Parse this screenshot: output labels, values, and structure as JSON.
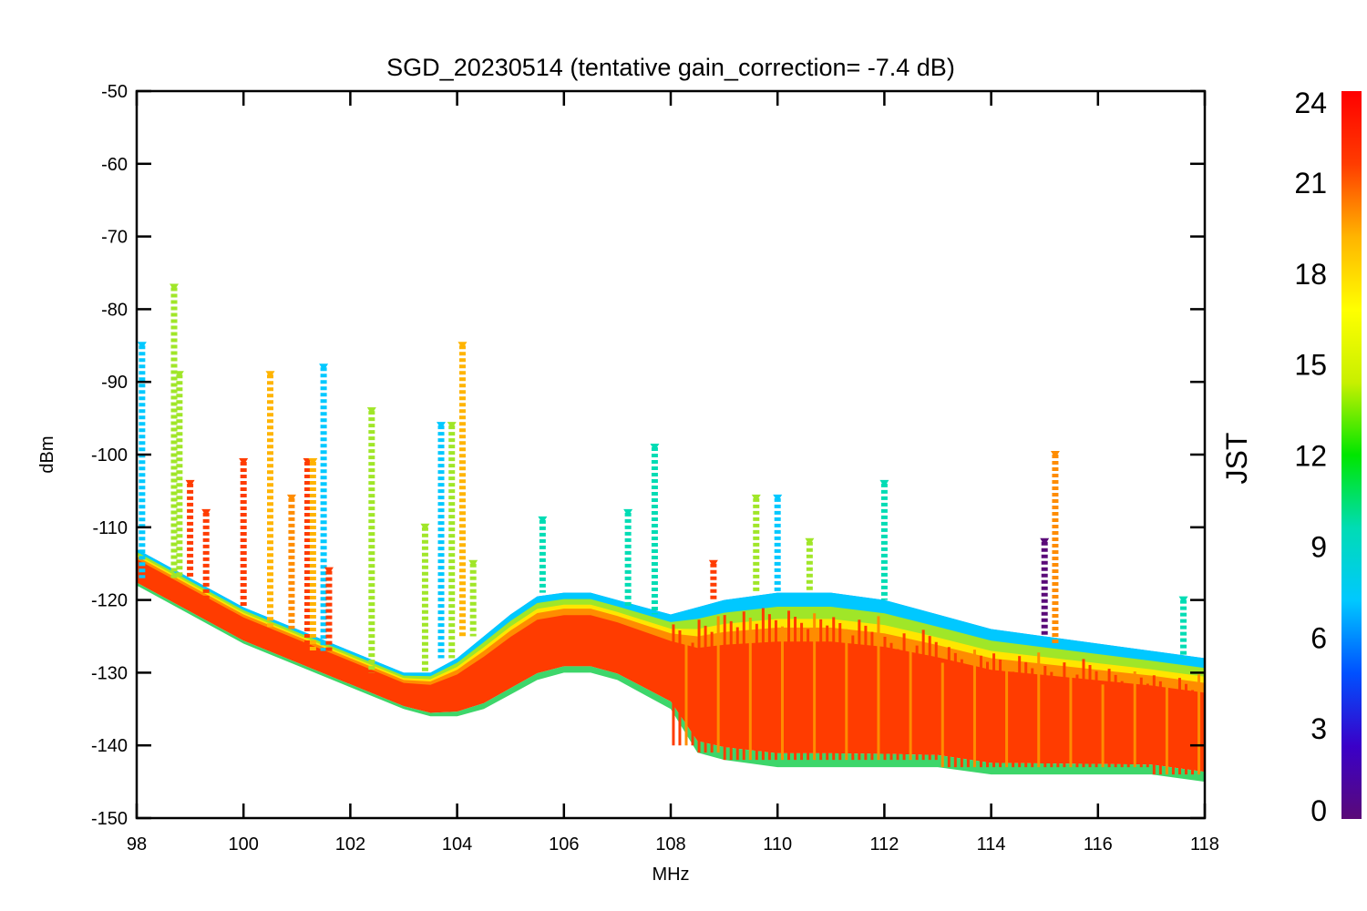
{
  "chart_data": {
    "type": "scatter",
    "title": "SGD_20230514 (tentative gain_correction= -7.4 dB)",
    "xlabel": "MHz",
    "ylabel": "dBm",
    "xlim": [
      98,
      118
    ],
    "ylim": [
      -150,
      -50
    ],
    "x_ticks": [
      "98",
      "100",
      "102",
      "104",
      "106",
      "108",
      "110",
      "112",
      "114",
      "116",
      "118"
    ],
    "y_ticks": [
      "-50",
      "-60",
      "-70",
      "-80",
      "-90",
      "-100",
      "-110",
      "-120",
      "-130",
      "-140",
      "-150"
    ],
    "colorbar": {
      "label": "JST",
      "range": [
        0,
        24
      ],
      "ticks": [
        "0",
        "3",
        "6",
        "9",
        "12",
        "15",
        "18",
        "21",
        "24"
      ],
      "colormap": "rainbow",
      "colors": [
        "#5a0a78",
        "#3a00c8",
        "#0050ff",
        "#00c8ff",
        "#00dcb4",
        "#00e600",
        "#c8f000",
        "#ffff00",
        "#ffb400",
        "#ff3c00",
        "#ff0000"
      ]
    },
    "grid": false,
    "noise_floor_profile": {
      "description_free_values": true,
      "x": [
        98,
        99,
        100,
        101,
        102,
        103,
        103.5,
        104,
        104.5,
        105,
        105.5,
        106,
        106.5,
        107,
        107.5,
        108,
        108.5,
        109,
        110,
        111,
        112,
        113,
        114,
        115,
        116,
        117,
        118
      ],
      "upper": [
        -113,
        -117,
        -121,
        -124,
        -127,
        -130,
        -130,
        -128,
        -125,
        -122,
        -119.5,
        -119,
        -119,
        -120,
        -121,
        -122,
        -121,
        -120,
        -119,
        -119,
        -120,
        -122,
        -124,
        -125,
        -126,
        -127,
        -128
      ],
      "lower": [
        -118,
        -122,
        -126,
        -129,
        -132,
        -135,
        -136,
        -136,
        -135,
        -133,
        -131,
        -130,
        -130,
        -131,
        -133,
        -135,
        -141,
        -142,
        -143,
        -143,
        -143,
        -143,
        -144,
        -144,
        -144,
        -144,
        -145
      ]
    },
    "peaks": [
      {
        "x": 98.1,
        "top": -85,
        "color": "#00c8ff"
      },
      {
        "x": 98.7,
        "top": -77,
        "color": "#a0e628"
      },
      {
        "x": 98.8,
        "top": -89,
        "color": "#a0e628"
      },
      {
        "x": 99.0,
        "top": -104,
        "color": "#ff3c00"
      },
      {
        "x": 99.3,
        "top": -108,
        "color": "#ff3c00"
      },
      {
        "x": 100.0,
        "top": -101,
        "color": "#ff3c00"
      },
      {
        "x": 100.5,
        "top": -89,
        "color": "#ffb400"
      },
      {
        "x": 100.9,
        "top": -106,
        "color": "#ff8c00"
      },
      {
        "x": 101.2,
        "top": -101,
        "color": "#ff3c00"
      },
      {
        "x": 101.3,
        "top": -101,
        "color": "#ffb400"
      },
      {
        "x": 101.5,
        "top": -88,
        "color": "#00c8ff"
      },
      {
        "x": 101.6,
        "top": -116,
        "color": "#ff3c00"
      },
      {
        "x": 102.4,
        "top": -94,
        "color": "#a0e628"
      },
      {
        "x": 103.4,
        "top": -110,
        "color": "#a0e628"
      },
      {
        "x": 103.7,
        "top": -96,
        "color": "#00c8ff"
      },
      {
        "x": 103.9,
        "top": -96,
        "color": "#a0e628"
      },
      {
        "x": 104.1,
        "top": -85,
        "color": "#ffb400"
      },
      {
        "x": 104.3,
        "top": -115,
        "color": "#a0e628"
      },
      {
        "x": 105.6,
        "top": -109,
        "color": "#00dcb4"
      },
      {
        "x": 107.2,
        "top": -108,
        "color": "#00dcb4"
      },
      {
        "x": 107.7,
        "top": -99,
        "color": "#00dcb4"
      },
      {
        "x": 108.8,
        "top": -115,
        "color": "#ff3c00"
      },
      {
        "x": 109.6,
        "top": -106,
        "color": "#a0e628"
      },
      {
        "x": 110.0,
        "top": -106,
        "color": "#00c8ff"
      },
      {
        "x": 110.6,
        "top": -112,
        "color": "#a0e628"
      },
      {
        "x": 112.0,
        "top": -104,
        "color": "#00dcb4"
      },
      {
        "x": 115.0,
        "top": -112,
        "color": "#5a0a78"
      },
      {
        "x": 115.2,
        "top": -100,
        "color": "#ff8c00"
      },
      {
        "x": 117.6,
        "top": -120,
        "color": "#00dcb4"
      }
    ]
  }
}
